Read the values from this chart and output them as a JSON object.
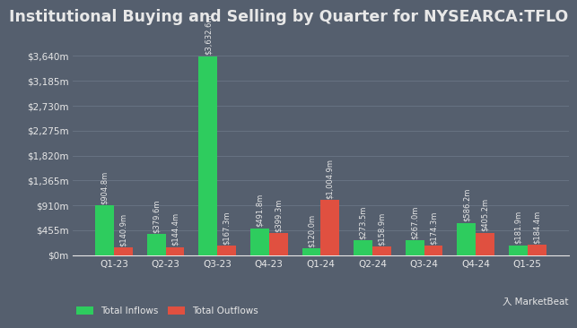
{
  "title": "Institutional Buying and Selling by Quarter for NYSEARCA:TFLO",
  "quarters": [
    "Q1-23",
    "Q2-23",
    "Q3-23",
    "Q4-23",
    "Q1-24",
    "Q2-24",
    "Q3-24",
    "Q4-24",
    "Q1-25"
  ],
  "inflows": [
    904.8,
    379.6,
    3632.6,
    491.8,
    120.0,
    273.5,
    267.0,
    586.2,
    181.9
  ],
  "outflows": [
    140.9,
    144.4,
    167.3,
    399.3,
    1004.9,
    158.9,
    174.3,
    405.2,
    184.4
  ],
  "inflow_labels": [
    "$904.8m",
    "$379.6m",
    "$3,632.6m",
    "$491.8m",
    "$120.0m",
    "$273.5m",
    "$267.0m",
    "$586.2m",
    "$181.9m"
  ],
  "outflow_labels": [
    "$140.9m",
    "$144.4m",
    "$167.3m",
    "$399.3m",
    "$1,004.9m",
    "$158.9m",
    "$174.3m",
    "$405.2m",
    "$184.4m"
  ],
  "inflow_color": "#2ecc5e",
  "outflow_color": "#e05040",
  "bg_color": "#555f6e",
  "text_color": "#e8e8e8",
  "grid_color": "#6a7585",
  "yticks": [
    0,
    455,
    910,
    1365,
    1820,
    2275,
    2730,
    3185,
    3640
  ],
  "ytick_labels": [
    "$0m",
    "$455m",
    "$910m",
    "$1,365m",
    "$1,820m",
    "$2,275m",
    "$2,730m",
    "$3,185m",
    "$3,640m"
  ],
  "ylim_max": 3900,
  "legend_labels": [
    "Total Inflows",
    "Total Outflows"
  ],
  "bar_width": 0.36,
  "label_fontsize": 6.0,
  "title_fontsize": 12.5,
  "tick_fontsize": 7.5,
  "legend_fontsize": 7.5
}
